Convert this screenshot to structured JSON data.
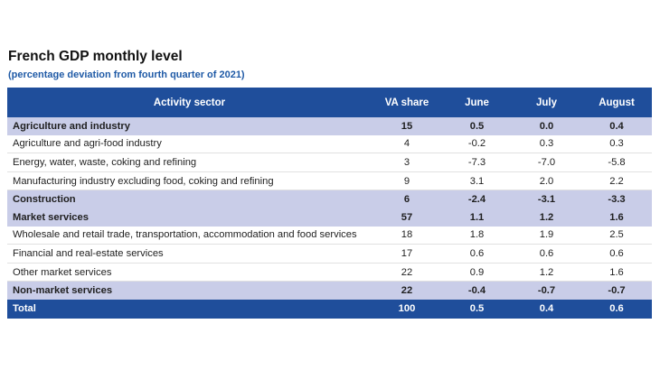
{
  "header": {
    "title": "French GDP monthly level",
    "subtitle": "(percentage deviation from fourth quarter of 2021)"
  },
  "table": {
    "columns": [
      "Activity sector",
      "VA share",
      "June",
      "July",
      "August"
    ],
    "rows": [
      {
        "type": "group",
        "cells": [
          "Agriculture and industry",
          "15",
          "0.5",
          "0.0",
          "0.4"
        ]
      },
      {
        "type": "sub",
        "cells": [
          "Agriculture and agri-food industry",
          "4",
          "-0.2",
          "0.3",
          "0.3"
        ]
      },
      {
        "type": "sub",
        "cells": [
          "Energy, water, waste, coking and refining",
          "3",
          "-7.3",
          "-7.0",
          "-5.8"
        ]
      },
      {
        "type": "sub",
        "cells": [
          "Manufacturing industry excluding food, coking and refining",
          "9",
          "3.1",
          "2.0",
          "2.2"
        ]
      },
      {
        "type": "group",
        "cells": [
          "Construction",
          "6",
          "-2.4",
          "-3.1",
          "-3.3"
        ]
      },
      {
        "type": "group",
        "cells": [
          "Market services",
          "57",
          "1.1",
          "1.2",
          "1.6"
        ]
      },
      {
        "type": "sub",
        "cells": [
          "Wholesale and retail trade, transportation, accommodation and food services",
          "18",
          "1.8",
          "1.9",
          "2.5"
        ]
      },
      {
        "type": "sub",
        "cells": [
          "Financial and real-estate services",
          "17",
          "0.6",
          "0.6",
          "0.6"
        ]
      },
      {
        "type": "sub",
        "cells": [
          "Other market services",
          "22",
          "0.9",
          "1.2",
          "1.6"
        ]
      },
      {
        "type": "group",
        "cells": [
          "Non-market services",
          "22",
          "-0.4",
          "-0.7",
          "-0.7"
        ]
      },
      {
        "type": "total",
        "cells": [
          "Total",
          "100",
          "0.5",
          "0.4",
          "0.6"
        ]
      }
    ]
  }
}
